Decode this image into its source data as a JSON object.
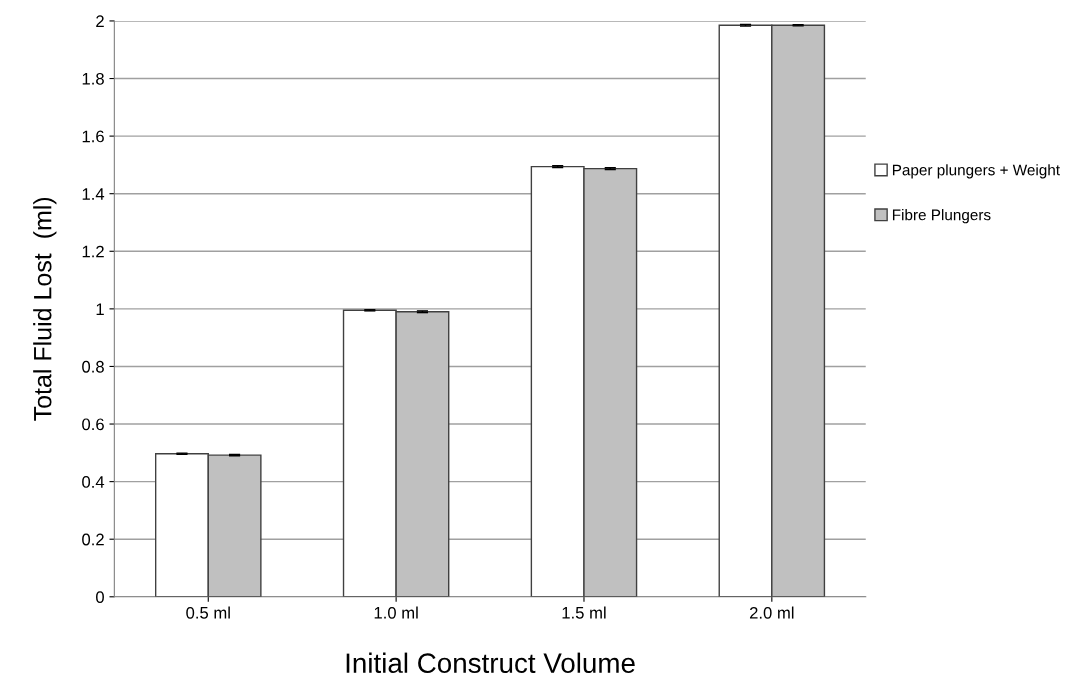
{
  "chart_data": {
    "type": "bar",
    "xlabel": "Initial Construct Volume",
    "ylabel": "Total Fluid Lost  (ml)",
    "categories": [
      "0.5 ml",
      "1.0 ml",
      "1.5 ml",
      "2.0 ml"
    ],
    "series": [
      {
        "name": "Paper plungers + Weight",
        "color": "#ffffff",
        "values": [
          0.497,
          0.995,
          1.494,
          1.985
        ],
        "errors": [
          0.002,
          0.002,
          0.003,
          0.003
        ]
      },
      {
        "name": "Fibre Plungers",
        "color": "#c0c0c0",
        "values": [
          0.492,
          0.99,
          1.487,
          1.985
        ],
        "errors": [
          0.002,
          0.003,
          0.003,
          0.002
        ]
      }
    ],
    "ylim": [
      0,
      2
    ],
    "yticks": [
      0,
      0.2,
      0.4,
      0.6,
      0.8,
      1,
      1.2,
      1.4,
      1.6,
      1.8,
      2
    ],
    "grid": "y",
    "legend": "right"
  }
}
